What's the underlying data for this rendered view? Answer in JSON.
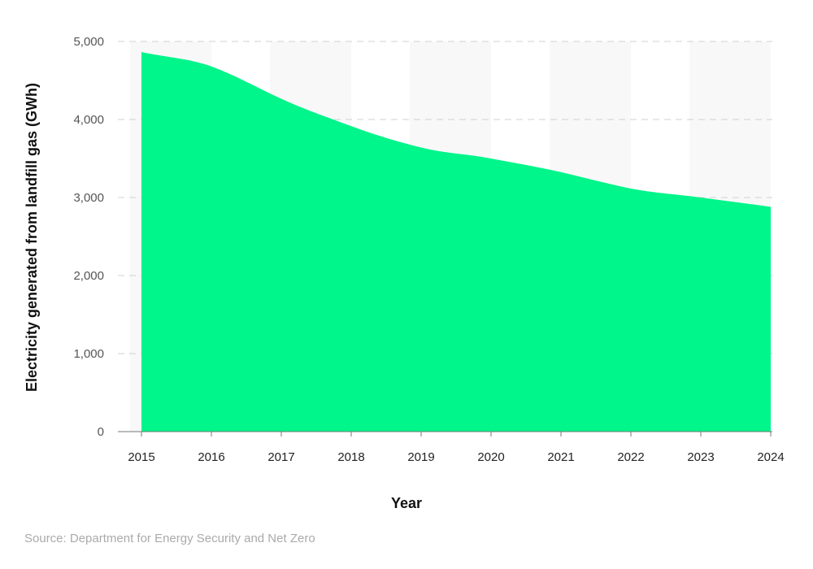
{
  "chart_data": {
    "type": "area",
    "title": "",
    "xlabel": "Year",
    "ylabel": "Electricity generated from landfill gas (GWh)",
    "categories": [
      "2015",
      "2016",
      "2017",
      "2018",
      "2019",
      "2020",
      "2021",
      "2022",
      "2023",
      "2024"
    ],
    "values": [
      4865,
      4680,
      4265,
      3915,
      3640,
      3500,
      3325,
      3115,
      3000,
      2880
    ],
    "ylim": [
      0,
      5000
    ],
    "yticks": [
      "0",
      "1,000",
      "2,000",
      "3,000",
      "4,000",
      "5,000"
    ],
    "grid": "horizontal dashed",
    "legend": "none",
    "colors": {
      "fill": "#00F58A",
      "band": "#F8F8F9",
      "grid": "#D0D0D0"
    }
  },
  "source": "Source: Department for Energy Security and Net Zero"
}
